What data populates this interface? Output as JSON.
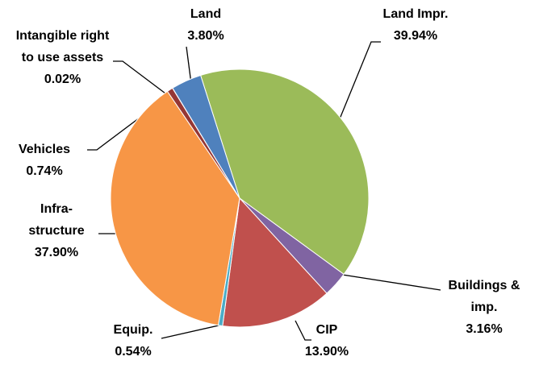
{
  "chart_data": {
    "type": "pie",
    "categories": [
      "Land Impr.",
      "Buildings & imp.",
      "CIP",
      "Equip.",
      "Infra-structure",
      "Vehicles",
      "Intangible right to use assets",
      "Land"
    ],
    "values": [
      39.94,
      3.16,
      13.9,
      0.54,
      37.9,
      0.74,
      0.02,
      3.8
    ],
    "value_labels": [
      "39.94%",
      "3.16%",
      "13.90%",
      "0.54%",
      "37.90%",
      "0.74%",
      "0.02%",
      "3.80%"
    ],
    "colors": [
      "#9bbb59",
      "#8064a2",
      "#c0504d",
      "#4bacc6",
      "#f79646",
      "#953735",
      "#4f81bd",
      "#4f81bd"
    ]
  }
}
